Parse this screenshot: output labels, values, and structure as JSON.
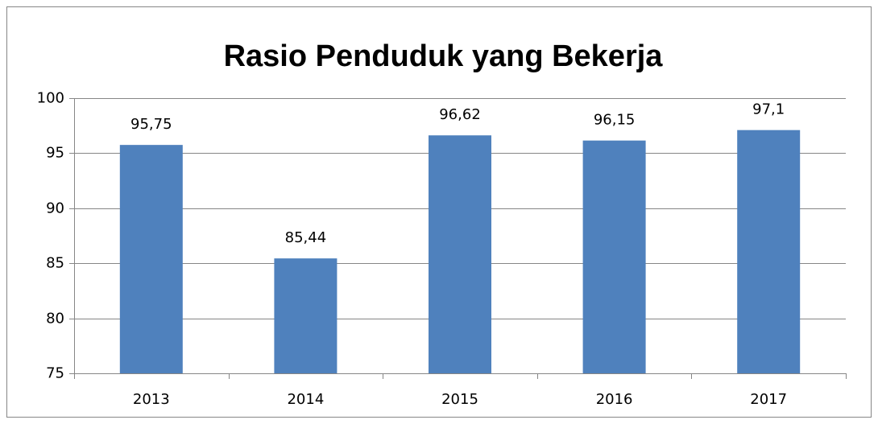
{
  "chart_data": {
    "type": "bar",
    "title": "Rasio Penduduk yang Bekerja",
    "categories": [
      "2013",
      "2014",
      "2015",
      "2016",
      "2017"
    ],
    "values": [
      95.75,
      85.44,
      96.62,
      96.15,
      97.1
    ],
    "value_labels": [
      "95,75",
      "85,44",
      "96,62",
      "96,15",
      "97,1"
    ],
    "color": "#4f81bd",
    "ylim": [
      75,
      100
    ],
    "yticks": [
      75,
      80,
      85,
      90,
      95,
      100
    ],
    "grid": true
  }
}
